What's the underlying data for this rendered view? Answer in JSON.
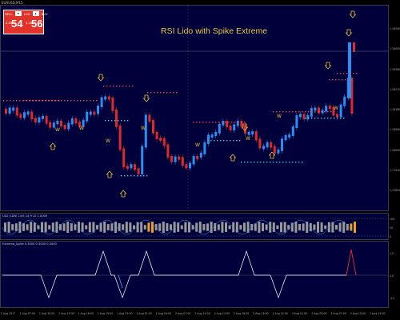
{
  "symbol_label": "EURUSD,M15",
  "one_click": {
    "lot_value": "1.00",
    "sell_prefix": "1.18",
    "sell_big": "54",
    "sell_sup": "4",
    "buy_prefix": "1.18",
    "buy_big": "56",
    "buy_sup": "1"
  },
  "title": "RSI Lido with Spike Extreme",
  "rsi_label": "LSD (LDN) 14,8 14,9 10 1.0000",
  "spike_label": "Extreme_Spike 0.3000 0.3000 0.3000",
  "price_ticks": [
    "1.18540",
    "1.18450",
    "1.18360",
    "1.18270",
    "1.18180",
    "1.18090",
    "1.18000",
    "1.17910",
    "1.17820"
  ],
  "rsi_ticks": [
    "100",
    "50",
    "0"
  ],
  "spike_ticks": [
    "1.0",
    "0.0",
    "-1.0"
  ],
  "time_ticks": [
    "1 Aug 2017",
    "1 Aug 07:00",
    "1 Aug 10:00",
    "1 Aug 13:00",
    "1 Aug 16:00",
    "1 Aug 19:00",
    "1 Aug 22:00",
    "2 Aug 01:00",
    "2 Aug 04:00",
    "2 Aug 07:00",
    "2 Aug 10:00",
    "2 Aug 13:00",
    "2 Aug 16:00",
    "2 Aug 19:00",
    "2 Aug 22:00",
    "3 Aug 01:00",
    "3 Aug 04:00",
    "3 Aug 07:00",
    "3 Aug 10:00",
    "3 Aug 13:00"
  ],
  "colors": {
    "background": "#00003a",
    "bull": "#2a8ff0",
    "bear": "#e02828",
    "arrow": "#f0c040",
    "dots_red": "#ff4040",
    "dots_cyan": "#40d0e0",
    "w_label": "#f0c040"
  }
}
